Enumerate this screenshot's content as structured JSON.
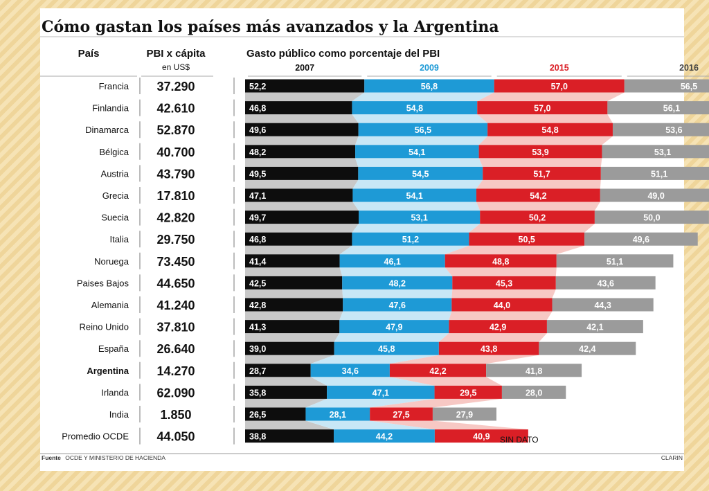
{
  "title": "Cómo gastan los países más avanzados y la Argentina",
  "headers": {
    "country": "País",
    "gdp": "PBI x cápita",
    "gdp_unit": "en US$",
    "spending": "Gasto público como porcentaje del PBI"
  },
  "no_data_label": "SIN DATO",
  "footer": {
    "source_label": "Fuente",
    "source_text": "OCDE Y MINISTERIO DE HACIENDA",
    "credit": "CLARIN"
  },
  "colors": {
    "2007": "#0d0d0d",
    "2009": "#1e9ad6",
    "2015": "#da1f26",
    "2016": "#9b9b9b",
    "band_2007": "#c8c8c8",
    "band_2009": "#c8e7f6",
    "band_2015": "#f7c8c4",
    "year_label_2007": "#111111",
    "year_label_2009": "#1e9ad6",
    "year_label_2015": "#da1f26",
    "year_label_2016": "#444444"
  },
  "chart_data": {
    "type": "bar",
    "title": "Cómo gastan los países más avanzados y la Argentina",
    "xlabel": "",
    "ylabel": "Gasto público como porcentaje del PBI",
    "stacked": true,
    "years": [
      "2007",
      "2009",
      "2015",
      "2016"
    ],
    "categories": [
      "Francia",
      "Finlandia",
      "Dinamarca",
      "Bélgica",
      "Austria",
      "Grecia",
      "Suecia",
      "Italia",
      "Noruega",
      "Paises Bajos",
      "Alemania",
      "Reino Unido",
      "España",
      "Argentina",
      "Irlanda",
      "India",
      "Promedio OCDE"
    ],
    "gdp_per_capita": [
      "37.290",
      "42.610",
      "52.870",
      "40.700",
      "43.790",
      "17.810",
      "42.820",
      "29.750",
      "73.450",
      "44.650",
      "41.240",
      "37.810",
      "26.640",
      "14.270",
      "62.090",
      "1.850",
      "44.050"
    ],
    "highlight": "Argentina",
    "series": [
      {
        "name": "2007",
        "values": [
          52.2,
          46.8,
          49.6,
          48.2,
          49.5,
          47.1,
          49.7,
          46.8,
          41.4,
          42.5,
          42.8,
          41.3,
          39.0,
          28.7,
          35.8,
          26.5,
          38.8
        ]
      },
      {
        "name": "2009",
        "values": [
          56.8,
          54.8,
          56.5,
          54.1,
          54.5,
          54.1,
          53.1,
          51.2,
          46.1,
          48.2,
          47.6,
          47.9,
          45.8,
          34.6,
          47.1,
          28.1,
          44.2
        ]
      },
      {
        "name": "2015",
        "values": [
          57.0,
          57.0,
          54.8,
          53.9,
          51.7,
          54.2,
          50.2,
          50.5,
          48.8,
          45.3,
          44.0,
          42.9,
          43.8,
          42.2,
          29.5,
          27.5,
          40.9
        ]
      },
      {
        "name": "2016",
        "values": [
          56.5,
          56.1,
          53.6,
          53.1,
          51.1,
          49.0,
          50.0,
          49.6,
          51.1,
          43.6,
          44.3,
          42.1,
          42.4,
          41.8,
          28.0,
          27.9,
          null
        ]
      }
    ],
    "labels": [
      [
        "52,2",
        "56,8",
        "57,0",
        "56,5"
      ],
      [
        "46,8",
        "54,8",
        "57,0",
        "56,1"
      ],
      [
        "49,6",
        "56,5",
        "54,8",
        "53,6"
      ],
      [
        "48,2",
        "54,1",
        "53,9",
        "53,1"
      ],
      [
        "49,5",
        "54,5",
        "51,7",
        "51,1"
      ],
      [
        "47,1",
        "54,1",
        "54,2",
        "49,0"
      ],
      [
        "49,7",
        "53,1",
        "50,2",
        "50,0"
      ],
      [
        "46,8",
        "51,2",
        "50,5",
        "49,6"
      ],
      [
        "41,4",
        "46,1",
        "48,8",
        "51,1"
      ],
      [
        "42,5",
        "48,2",
        "45,3",
        "43,6"
      ],
      [
        "42,8",
        "47,6",
        "44,0",
        "44,3"
      ],
      [
        "41,3",
        "47,9",
        "42,9",
        "42,1"
      ],
      [
        "39,0",
        "45,8",
        "43,8",
        "42,4"
      ],
      [
        "28,7",
        "34,6",
        "42,2",
        "41,8"
      ],
      [
        "35,8",
        "47,1",
        "29,5",
        "28,0"
      ],
      [
        "26,5",
        "28,1",
        "27,5",
        "27,9"
      ],
      [
        "38,8",
        "44,2",
        "40,9",
        ""
      ]
    ],
    "grid": false,
    "legend": "top"
  }
}
